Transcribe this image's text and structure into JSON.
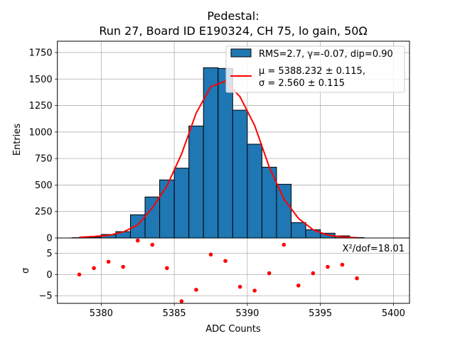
{
  "chart_data": [
    {
      "type": "bar",
      "title_line1": "Pedestal:",
      "title_line2": "Run 27, Board ID E190324, CH 75, lo gain, 50Ω",
      "xlabel": "ADC Counts",
      "ylabel": "Entries",
      "xlim": [
        5377.0,
        5401.1
      ],
      "ylim": [
        0,
        1857
      ],
      "grid": true,
      "xticks": [
        5380,
        5385,
        5390,
        5395,
        5400
      ],
      "yticks": [
        0,
        250,
        500,
        750,
        1000,
        1250,
        1500,
        1750
      ],
      "ytick_labels": [
        "0",
        "250",
        "500",
        "750",
        "1000",
        "1250",
        "1500",
        "1750"
      ],
      "bin_edges": [
        5378,
        5379,
        5380,
        5381,
        5382,
        5383,
        5384,
        5385,
        5386,
        5387,
        5388,
        5389,
        5390,
        5391,
        5392,
        5393,
        5394,
        5395,
        5396,
        5397,
        5398
      ],
      "series": [
        {
          "name": "RMS=2.7, γ=-0.07, dip=0.90",
          "kind": "histogram",
          "color": "#1f77b4",
          "values": [
            3,
            8,
            33,
            60,
            219,
            387,
            548,
            659,
            1057,
            1607,
            1600,
            1206,
            885,
            668,
            507,
            145,
            78,
            45,
            20,
            4
          ]
        },
        {
          "name_line1": "μ = 5388.232 ± 0.115,",
          "name_line2": "σ = 2.560 ± 0.115",
          "kind": "line",
          "color": "#ff0000",
          "x": [
            5378.5,
            5379.5,
            5380.5,
            5381.5,
            5382.5,
            5383.5,
            5384.5,
            5385.5,
            5386.5,
            5387.5,
            5388.5,
            5389.5,
            5390.5,
            5391.5,
            5392.5,
            5393.5,
            5394.5,
            5395.5,
            5396.5,
            5397.5
          ],
          "values": [
            7,
            14,
            25,
            56,
            123,
            284,
            491,
            793,
            1178,
            1428,
            1480,
            1333,
            1061,
            670,
            369,
            185,
            78,
            27,
            10,
            3
          ]
        }
      ],
      "legend_position": "top-right"
    },
    {
      "type": "scatter",
      "xlabel": "ADC Counts",
      "ylabel": "σ",
      "xlim": [
        5377.0,
        5401.1
      ],
      "ylim": [
        -6.8,
        8.6
      ],
      "grid": true,
      "xticks": [
        5380,
        5385,
        5390,
        5395,
        5400
      ],
      "xtick_labels": [
        "5380",
        "5385",
        "5390",
        "5395",
        "5400"
      ],
      "yticks": [
        -5,
        0,
        5
      ],
      "ytick_labels": [
        "−5",
        "0",
        "5"
      ],
      "annotation": "X²/dof=18.01",
      "color": "#ff0000",
      "x": [
        5378.5,
        5379.5,
        5380.5,
        5381.5,
        5382.5,
        5383.5,
        5384.5,
        5385.5,
        5386.5,
        5387.5,
        5388.5,
        5389.5,
        5390.5,
        5391.5,
        5392.5,
        5393.5,
        5394.5,
        5395.5,
        5396.5,
        5397.5
      ],
      "values": [
        0,
        1.5,
        3.0,
        1.8,
        8.0,
        7.0,
        1.5,
        -6.3,
        -3.6,
        4.7,
        3.2,
        -2.9,
        -3.8,
        0.3,
        7.0,
        -2.6,
        0.3,
        1.8,
        2.3,
        -0.9
      ]
    }
  ]
}
